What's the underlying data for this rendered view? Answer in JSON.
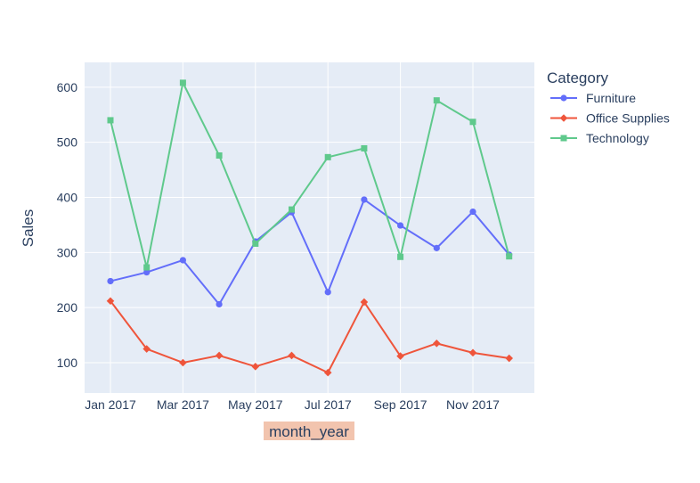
{
  "chart_data": {
    "type": "line",
    "title": "",
    "xlabel": "month_year",
    "ylabel": "Sales",
    "x": [
      "2017-01",
      "2017-02",
      "2017-03",
      "2017-04",
      "2017-05",
      "2017-06",
      "2017-07",
      "2017-08",
      "2017-09",
      "2017-10",
      "2017-11",
      "2017-12"
    ],
    "x_tick_labels": [
      "Jan 2017",
      "Mar 2017",
      "May 2017",
      "Jul 2017",
      "Sep 2017",
      "Nov 2017"
    ],
    "y_ticks": [
      100,
      200,
      300,
      400,
      500,
      600
    ],
    "ylim": [
      45,
      645
    ],
    "grid": true,
    "legend_title": "Category",
    "legend_position": "right",
    "series": [
      {
        "name": "Furniture",
        "color": "#636efa",
        "marker": "circle",
        "values": [
          248,
          264,
          286,
          206,
          320,
          373,
          228,
          396,
          349,
          308,
          374,
          296
        ]
      },
      {
        "name": "Office Supplies",
        "color": "#ef553b",
        "marker": "diamond",
        "values": [
          212,
          125,
          100,
          113,
          93,
          113,
          82,
          210,
          112,
          135,
          118,
          108
        ]
      },
      {
        "name": "Technology",
        "color": "#5fc98c",
        "marker": "square",
        "values": [
          540,
          273,
          608,
          476,
          316,
          378,
          473,
          489,
          292,
          576,
          537,
          293
        ]
      }
    ]
  },
  "colors": {
    "plot_background": "#e5ecf6",
    "grid": "#ffffff",
    "text": "#2a3f5f",
    "xlabel_highlight": "#f2c4ae"
  }
}
